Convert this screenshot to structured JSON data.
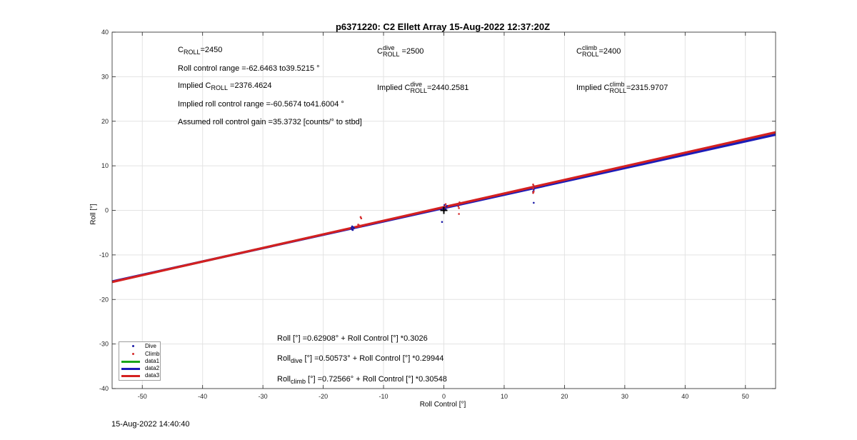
{
  "chart_data": {
    "type": "scatter",
    "title": "p6371220: C2 Ellett Array 15-Aug-2022 12:37:20Z",
    "xlabel": "Roll Control [°]",
    "ylabel": "Roll [°]",
    "xlim": [
      -55,
      55
    ],
    "ylim": [
      -40,
      40
    ],
    "xticks": [
      "-50",
      "-40",
      "-30",
      "-20",
      "-10",
      "0",
      "10",
      "20",
      "30",
      "40",
      "50"
    ],
    "yticks": [
      "40",
      "30",
      "20",
      "10",
      "0",
      "-10",
      "-20",
      "-30",
      "-40"
    ],
    "grid": true,
    "legend_position": "bottom-left",
    "series": [
      {
        "name": "Dive",
        "kind": "points",
        "color": "#1a1aa6",
        "points": [
          [
            -15.2,
            -3.6
          ],
          [
            -15.3,
            -4.1
          ],
          [
            -15.1,
            -4.4
          ],
          [
            -15.3,
            -3.9
          ],
          [
            -15.2,
            -4.3
          ],
          [
            -15.0,
            -3.8
          ],
          [
            -14.9,
            -4.0
          ],
          [
            -0.3,
            -2.6
          ],
          [
            0.1,
            1.2
          ],
          [
            0.2,
            0.8
          ],
          [
            -0.1,
            0.5
          ],
          [
            0.3,
            0.2
          ],
          [
            0.0,
            -0.1
          ],
          [
            0.4,
            0.9
          ],
          [
            0.5,
            1.0
          ],
          [
            14.9,
            1.7
          ],
          [
            14.8,
            5.0
          ],
          [
            14.9,
            4.6
          ],
          [
            14.8,
            4.2
          ],
          [
            14.9,
            5.3
          ]
        ]
      },
      {
        "name": "Climb",
        "kind": "points",
        "color": "#d42a2a",
        "points": [
          [
            -13.8,
            -1.5
          ],
          [
            -13.7,
            -1.8
          ],
          [
            -14.0,
            -3.4
          ],
          [
            -13.8,
            -3.7
          ],
          [
            -14.2,
            -3.2
          ],
          [
            2.5,
            -0.8
          ],
          [
            2.6,
            1.8
          ],
          [
            2.4,
            0.9
          ],
          [
            2.5,
            0.5
          ],
          [
            0.3,
            1.4
          ],
          [
            0.2,
            0.9
          ],
          [
            0.0,
            0.4
          ],
          [
            14.8,
            5.8
          ],
          [
            14.9,
            5.5
          ],
          [
            14.8,
            4.9
          ],
          [
            14.9,
            4.2
          ],
          [
            14.8,
            3.9
          ],
          [
            14.8,
            5.1
          ]
        ]
      },
      {
        "name": "data1",
        "kind": "line",
        "color": "#1aa61a",
        "intercept": 0.62908,
        "slope": 0.3026
      },
      {
        "name": "data2",
        "kind": "line",
        "color": "#1c1cb8",
        "intercept": 0.50573,
        "slope": 0.29944
      },
      {
        "name": "data3",
        "kind": "line",
        "color": "#d42020",
        "intercept": 0.72566,
        "slope": 0.30548
      }
    ],
    "marker": {
      "x": 0,
      "y": 0,
      "symbol": "+",
      "color": "#000000"
    },
    "annotations": {
      "c_roll": {
        "base": "C",
        "sub": "ROLL",
        "value": "=2450"
      },
      "c_roll_dive": {
        "base": "C",
        "sub": "ROLL",
        "sup": "dive",
        "value": "=2500"
      },
      "c_roll_climb": {
        "base": "C",
        "sub": "ROLL",
        "sup": "climb",
        "value": "=2400"
      },
      "roll_range": "Roll control range =-62.6463 to39.5215 °",
      "implied_c_roll": {
        "prefix": "Implied C",
        "sub": "ROLL",
        "value": "=2376.4624"
      },
      "implied_c_roll_dive": {
        "prefix": "Implied C",
        "sub": "ROLL",
        "sup": "dive",
        "value": "=2440.2581"
      },
      "implied_c_roll_climb": {
        "prefix": "Implied C",
        "sub": "ROLL",
        "sup": "climb",
        "value": "=2315.9707"
      },
      "implied_range": "Implied roll control range =-60.5674 to41.6004 °",
      "gain": "Assumed roll control gain =35.3732 [counts/° to stbd]",
      "fit_all": "Roll [°] =0.62908° + Roll Control [°] *0.3026",
      "fit_dive": {
        "prefix": "Roll",
        "sub": "dive",
        "rest": " [°] =0.50573° + Roll Control [°] *0.29944"
      },
      "fit_climb": {
        "prefix": "Roll",
        "sub": "climb",
        "rest": " [°] =0.72566° + Roll Control [°] *0.30548"
      }
    }
  },
  "footer_timestamp": "15-Aug-2022 14:40:40"
}
